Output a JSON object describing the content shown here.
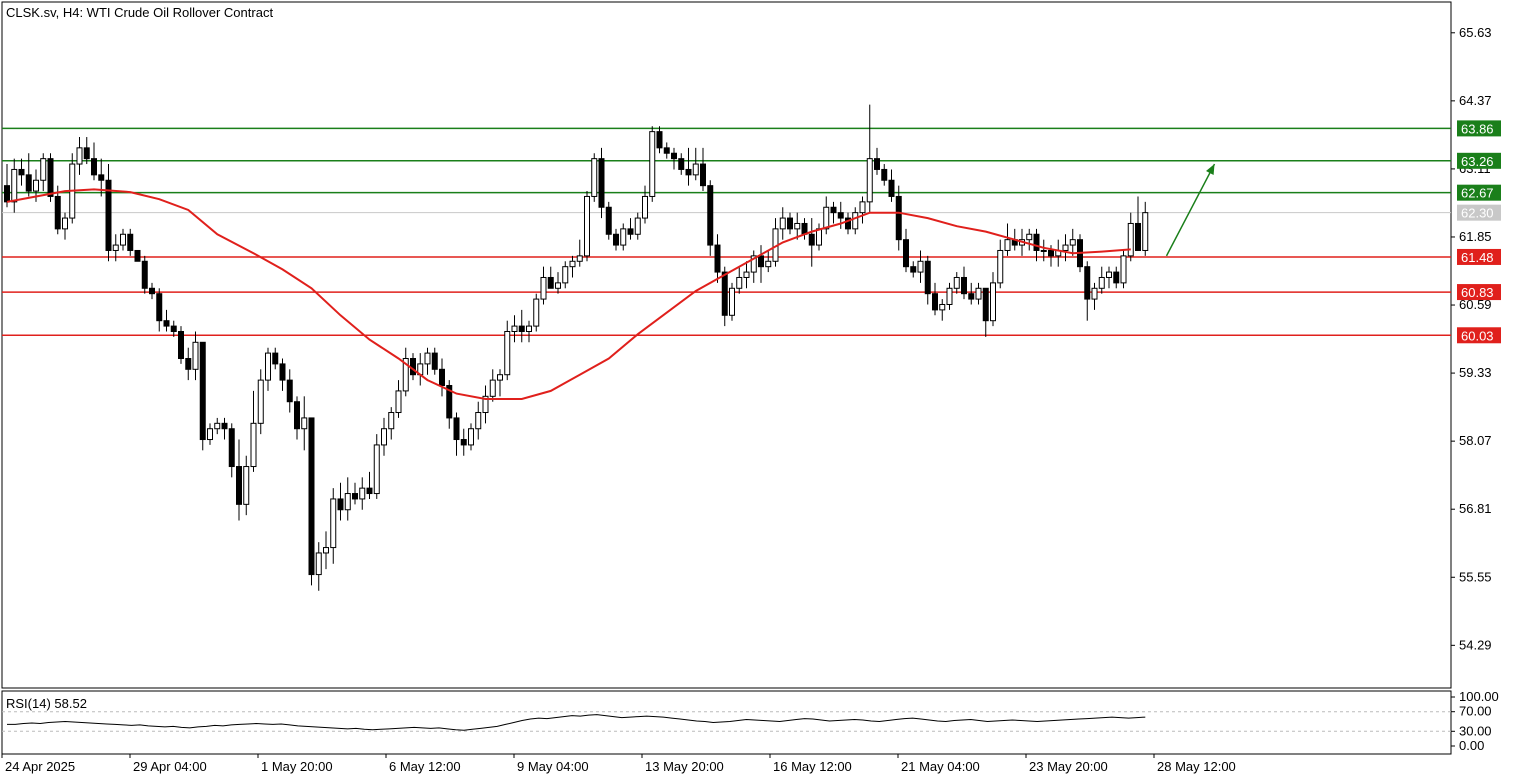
{
  "header": {
    "title": "CLSK.sv, H4:  WTI Crude Oil Rollover Contract"
  },
  "rsi": {
    "label": "RSI(14) 58.52",
    "levels": [
      "100.00",
      "70.00",
      "30.00",
      "0.00"
    ]
  },
  "colors": {
    "up": "#ffffff",
    "down": "#000000",
    "ma": "#e0201c",
    "support": "#e0201c",
    "resistance": "#1a7f1a",
    "last": "#c8c8c8",
    "arrow": "#1a7f1a"
  },
  "chart_data": {
    "type": "candlestick",
    "title": "CLSK.sv, H4:  WTI Crude Oil Rollover Contract",
    "timeframe": "H4",
    "y_ticks": [
      "65.63",
      "64.37",
      "63.11",
      "61.85",
      "60.59",
      "59.33",
      "58.07",
      "56.81",
      "55.55",
      "54.29"
    ],
    "x_ticks": [
      "24 Apr 2025",
      "29 Apr 04:00",
      "1 May 20:00",
      "6 May 12:00",
      "9 May 04:00",
      "13 May 20:00",
      "16 May 12:00",
      "21 May 04:00",
      "23 May 20:00",
      "28 May 12:00"
    ],
    "ylim": [
      53.5,
      66.2
    ],
    "resistance_levels": [
      {
        "value": 63.86,
        "label": "63.86"
      },
      {
        "value": 63.26,
        "label": "63.26"
      },
      {
        "value": 62.67,
        "label": "62.67"
      }
    ],
    "support_levels": [
      {
        "value": 61.48,
        "label": "61.48"
      },
      {
        "value": 60.83,
        "label": "60.83"
      },
      {
        "value": 60.03,
        "label": "60.03"
      }
    ],
    "last_price": {
      "value": 62.3,
      "label": "62.30"
    },
    "candles_ohlc": [
      [
        62.8,
        63.2,
        62.4,
        62.5
      ],
      [
        62.5,
        63.3,
        62.3,
        63.1
      ],
      [
        63.1,
        63.3,
        62.8,
        63.0
      ],
      [
        63.0,
        63.4,
        62.6,
        62.7
      ],
      [
        62.7,
        63.1,
        62.5,
        62.9
      ],
      [
        62.9,
        63.4,
        62.7,
        63.3
      ],
      [
        63.3,
        63.4,
        62.5,
        62.6
      ],
      [
        62.6,
        62.8,
        61.9,
        62.0
      ],
      [
        62.0,
        62.3,
        61.8,
        62.2
      ],
      [
        62.2,
        63.4,
        62.1,
        63.2
      ],
      [
        63.2,
        63.7,
        63.0,
        63.5
      ],
      [
        63.5,
        63.7,
        63.2,
        63.3
      ],
      [
        63.3,
        63.6,
        62.9,
        63.0
      ],
      [
        63.0,
        63.3,
        62.6,
        62.9
      ],
      [
        62.9,
        63.2,
        61.4,
        61.6
      ],
      [
        61.6,
        61.9,
        61.4,
        61.7
      ],
      [
        61.7,
        62.0,
        61.6,
        61.9
      ],
      [
        61.9,
        62.0,
        61.5,
        61.6
      ],
      [
        61.6,
        61.6,
        61.4,
        61.4
      ],
      [
        61.4,
        61.5,
        60.8,
        60.9
      ],
      [
        60.9,
        61.0,
        60.7,
        60.8
      ],
      [
        60.8,
        60.9,
        60.1,
        60.3
      ],
      [
        60.3,
        60.5,
        60.1,
        60.2
      ],
      [
        60.2,
        60.3,
        60.0,
        60.1
      ],
      [
        60.1,
        60.2,
        59.5,
        59.6
      ],
      [
        59.6,
        59.8,
        59.2,
        59.4
      ],
      [
        59.4,
        60.1,
        59.2,
        59.9
      ],
      [
        59.9,
        59.9,
        57.9,
        58.1
      ],
      [
        58.1,
        58.4,
        58.0,
        58.3
      ],
      [
        58.3,
        58.5,
        58.2,
        58.4
      ],
      [
        58.4,
        58.5,
        58.1,
        58.3
      ],
      [
        58.3,
        58.4,
        57.4,
        57.6
      ],
      [
        57.6,
        58.1,
        56.6,
        56.9
      ],
      [
        56.9,
        57.8,
        56.7,
        57.6
      ],
      [
        57.6,
        59.0,
        57.5,
        58.4
      ],
      [
        58.4,
        59.4,
        58.2,
        59.2
      ],
      [
        59.2,
        59.8,
        59.0,
        59.7
      ],
      [
        59.7,
        59.8,
        59.4,
        59.5
      ],
      [
        59.5,
        59.6,
        59.0,
        59.2
      ],
      [
        59.2,
        59.4,
        58.6,
        58.8
      ],
      [
        58.8,
        58.9,
        58.1,
        58.3
      ],
      [
        58.3,
        58.9,
        57.9,
        58.5
      ],
      [
        58.5,
        58.5,
        55.4,
        55.6
      ],
      [
        55.6,
        56.2,
        55.3,
        56.0
      ],
      [
        56.0,
        56.4,
        55.7,
        56.1
      ],
      [
        56.1,
        57.2,
        55.8,
        57.0
      ],
      [
        57.0,
        57.3,
        56.6,
        56.8
      ],
      [
        56.8,
        57.4,
        56.6,
        57.1
      ],
      [
        57.1,
        57.3,
        56.9,
        57.0
      ],
      [
        57.0,
        57.4,
        56.8,
        57.2
      ],
      [
        57.2,
        57.5,
        57.0,
        57.1
      ],
      [
        57.1,
        58.2,
        57.0,
        58.0
      ],
      [
        58.0,
        58.5,
        57.8,
        58.3
      ],
      [
        58.3,
        58.7,
        58.1,
        58.6
      ],
      [
        58.6,
        59.2,
        58.5,
        59.0
      ],
      [
        59.0,
        59.8,
        58.9,
        59.6
      ],
      [
        59.6,
        59.7,
        59.2,
        59.3
      ],
      [
        59.3,
        59.7,
        59.1,
        59.5
      ],
      [
        59.5,
        59.8,
        59.3,
        59.7
      ],
      [
        59.7,
        59.8,
        59.3,
        59.4
      ],
      [
        59.4,
        59.6,
        58.9,
        59.1
      ],
      [
        59.1,
        59.2,
        58.3,
        58.5
      ],
      [
        58.5,
        58.6,
        57.8,
        58.1
      ],
      [
        58.1,
        58.3,
        57.8,
        58.0
      ],
      [
        58.0,
        58.4,
        57.9,
        58.3
      ],
      [
        58.3,
        58.8,
        58.1,
        58.6
      ],
      [
        58.6,
        59.1,
        58.4,
        58.9
      ],
      [
        58.9,
        59.4,
        58.8,
        59.2
      ],
      [
        59.2,
        59.4,
        58.9,
        59.3
      ],
      [
        59.3,
        60.3,
        59.2,
        60.1
      ],
      [
        60.1,
        60.4,
        59.9,
        60.2
      ],
      [
        60.2,
        60.5,
        59.9,
        60.1
      ],
      [
        60.1,
        60.3,
        59.9,
        60.2
      ],
      [
        60.2,
        60.8,
        60.1,
        60.7
      ],
      [
        60.7,
        61.3,
        60.6,
        61.1
      ],
      [
        61.1,
        61.3,
        60.9,
        60.9
      ],
      [
        60.9,
        61.2,
        60.8,
        61.0
      ],
      [
        61.0,
        61.4,
        60.9,
        61.3
      ],
      [
        61.3,
        61.5,
        61.1,
        61.4
      ],
      [
        61.4,
        61.8,
        61.3,
        61.5
      ],
      [
        61.5,
        62.7,
        61.4,
        62.6
      ],
      [
        62.6,
        63.4,
        62.5,
        63.3
      ],
      [
        63.3,
        63.5,
        62.2,
        62.4
      ],
      [
        62.4,
        62.5,
        61.8,
        61.9
      ],
      [
        61.9,
        62.0,
        61.6,
        61.7
      ],
      [
        61.7,
        62.1,
        61.6,
        62.0
      ],
      [
        62.0,
        62.2,
        61.8,
        61.9
      ],
      [
        61.9,
        62.3,
        61.8,
        62.2
      ],
      [
        62.2,
        62.8,
        62.1,
        62.6
      ],
      [
        62.6,
        63.9,
        62.5,
        63.8
      ],
      [
        63.8,
        63.9,
        63.4,
        63.5
      ],
      [
        63.5,
        63.6,
        63.3,
        63.4
      ],
      [
        63.4,
        63.5,
        63.1,
        63.3
      ],
      [
        63.3,
        63.4,
        63.0,
        63.1
      ],
      [
        63.1,
        63.5,
        62.8,
        63.0
      ],
      [
        63.0,
        63.5,
        62.9,
        63.2
      ],
      [
        63.2,
        63.5,
        62.7,
        62.8
      ],
      [
        62.8,
        62.9,
        61.5,
        61.7
      ],
      [
        61.7,
        61.9,
        61.0,
        61.2
      ],
      [
        61.2,
        61.3,
        60.2,
        60.4
      ],
      [
        60.4,
        61.0,
        60.3,
        60.9
      ],
      [
        60.9,
        61.3,
        60.8,
        61.1
      ],
      [
        61.1,
        61.4,
        60.9,
        61.2
      ],
      [
        61.2,
        61.6,
        61.0,
        61.5
      ],
      [
        61.5,
        61.7,
        61.0,
        61.3
      ],
      [
        61.3,
        61.6,
        61.2,
        61.4
      ],
      [
        61.4,
        62.2,
        61.3,
        62.0
      ],
      [
        62.0,
        62.4,
        61.8,
        62.2
      ],
      [
        62.2,
        62.3,
        61.9,
        62.0
      ],
      [
        62.0,
        62.3,
        61.8,
        62.1
      ],
      [
        62.1,
        62.2,
        61.8,
        61.9
      ],
      [
        61.9,
        62.2,
        61.3,
        61.7
      ],
      [
        61.7,
        62.1,
        61.6,
        62.0
      ],
      [
        62.0,
        62.6,
        61.9,
        62.4
      ],
      [
        62.4,
        62.5,
        62.1,
        62.3
      ],
      [
        62.3,
        62.5,
        62.0,
        62.2
      ],
      [
        62.2,
        62.3,
        61.9,
        62.0
      ],
      [
        62.0,
        62.4,
        61.9,
        62.3
      ],
      [
        62.3,
        62.6,
        62.1,
        62.5
      ],
      [
        62.5,
        64.3,
        62.3,
        63.3
      ],
      [
        63.3,
        63.5,
        63.0,
        63.1
      ],
      [
        63.1,
        63.2,
        62.8,
        62.9
      ],
      [
        62.9,
        63.1,
        62.5,
        62.6
      ],
      [
        62.6,
        62.8,
        61.6,
        61.8
      ],
      [
        61.8,
        62.0,
        61.2,
        61.3
      ],
      [
        61.3,
        61.4,
        61.1,
        61.2
      ],
      [
        61.2,
        61.6,
        61.0,
        61.4
      ],
      [
        61.4,
        61.5,
        60.6,
        60.8
      ],
      [
        60.8,
        61.0,
        60.4,
        60.5
      ],
      [
        60.5,
        60.7,
        60.3,
        60.6
      ],
      [
        60.6,
        61.0,
        60.5,
        60.9
      ],
      [
        60.9,
        61.2,
        60.8,
        61.1
      ],
      [
        61.1,
        61.3,
        60.7,
        60.8
      ],
      [
        60.8,
        61.0,
        60.6,
        60.7
      ],
      [
        60.7,
        61.0,
        60.6,
        60.9
      ],
      [
        60.9,
        60.9,
        60.0,
        60.3
      ],
      [
        60.3,
        61.2,
        60.2,
        61.0
      ],
      [
        61.0,
        61.8,
        60.9,
        61.6
      ],
      [
        61.6,
        62.1,
        61.5,
        61.8
      ],
      [
        61.8,
        62.0,
        61.6,
        61.7
      ],
      [
        61.7,
        62.0,
        61.5,
        61.8
      ],
      [
        61.8,
        62.0,
        61.6,
        61.9
      ],
      [
        61.9,
        62.0,
        61.4,
        61.6
      ],
      [
        61.6,
        61.8,
        61.4,
        61.6
      ],
      [
        61.6,
        61.7,
        61.3,
        61.5
      ],
      [
        61.5,
        61.8,
        61.3,
        61.6
      ],
      [
        61.6,
        61.9,
        61.4,
        61.7
      ],
      [
        61.7,
        62.0,
        61.5,
        61.8
      ],
      [
        61.8,
        61.9,
        61.2,
        61.3
      ],
      [
        61.3,
        61.4,
        60.3,
        60.7
      ],
      [
        60.7,
        61.0,
        60.5,
        60.9
      ],
      [
        60.9,
        61.3,
        60.8,
        61.1
      ],
      [
        61.1,
        61.3,
        60.9,
        61.2
      ],
      [
        61.2,
        61.3,
        60.9,
        61.0
      ],
      [
        61.0,
        61.6,
        60.9,
        61.5
      ],
      [
        61.5,
        62.3,
        61.4,
        62.1
      ],
      [
        62.1,
        62.6,
        61.7,
        61.6
      ],
      [
        61.6,
        62.5,
        61.5,
        62.3
      ]
    ],
    "ma_curve": [
      [
        0,
        62.5
      ],
      [
        4,
        62.6
      ],
      [
        8,
        62.7
      ],
      [
        12,
        62.73
      ],
      [
        17,
        62.68
      ],
      [
        21,
        62.55
      ],
      [
        25,
        62.35
      ],
      [
        29,
        61.9
      ],
      [
        34,
        61.55
      ],
      [
        38,
        61.25
      ],
      [
        42,
        60.9
      ],
      [
        46,
        60.4
      ],
      [
        50,
        59.95
      ],
      [
        54,
        59.6
      ],
      [
        58,
        59.2
      ],
      [
        62,
        58.95
      ],
      [
        66,
        58.85
      ],
      [
        71,
        58.85
      ],
      [
        75,
        59.0
      ],
      [
        79,
        59.3
      ],
      [
        83,
        59.6
      ],
      [
        87,
        60.05
      ],
      [
        91,
        60.45
      ],
      [
        95,
        60.85
      ],
      [
        99,
        61.15
      ],
      [
        103,
        61.45
      ],
      [
        107,
        61.75
      ],
      [
        111,
        61.95
      ],
      [
        115,
        62.1
      ],
      [
        119,
        62.3
      ],
      [
        123,
        62.3
      ],
      [
        127,
        62.2
      ],
      [
        131,
        62.05
      ],
      [
        135,
        61.95
      ],
      [
        139,
        61.8
      ],
      [
        143,
        61.65
      ],
      [
        147,
        61.55
      ],
      [
        151,
        61.58
      ],
      [
        155,
        61.62
      ]
    ],
    "rsi_curve": [
      44,
      44,
      46,
      47,
      46,
      48,
      49,
      50,
      49,
      48,
      47,
      46,
      45,
      44,
      43,
      42,
      43,
      41,
      40,
      39,
      40,
      38,
      37,
      39,
      40,
      42,
      41,
      43,
      44,
      45,
      46,
      45,
      44,
      45,
      43,
      41,
      40,
      39,
      38,
      37,
      36,
      35,
      36,
      34,
      33,
      34,
      35,
      36,
      37,
      38,
      37,
      36,
      37,
      35,
      33,
      32,
      34,
      36,
      38,
      40,
      44,
      48,
      52,
      55,
      57,
      56,
      58,
      60,
      62,
      61,
      63,
      64,
      62,
      60,
      58,
      59,
      60,
      61,
      60,
      59,
      57,
      55,
      53,
      51,
      50,
      48,
      49,
      50,
      52,
      54,
      53,
      52,
      51,
      50,
      52,
      54,
      56,
      55,
      53,
      51,
      52,
      53,
      54,
      53,
      51,
      50,
      52,
      54,
      56,
      57,
      55,
      53,
      51,
      50,
      52,
      53,
      54,
      52,
      50,
      51,
      52,
      53,
      52,
      51,
      50,
      51,
      52,
      53,
      54,
      55,
      56,
      57,
      58,
      59,
      58,
      57,
      58,
      59
    ],
    "trend_arrow": {
      "from_value": 61.5,
      "to_value": 63.2,
      "direction": "up"
    }
  }
}
